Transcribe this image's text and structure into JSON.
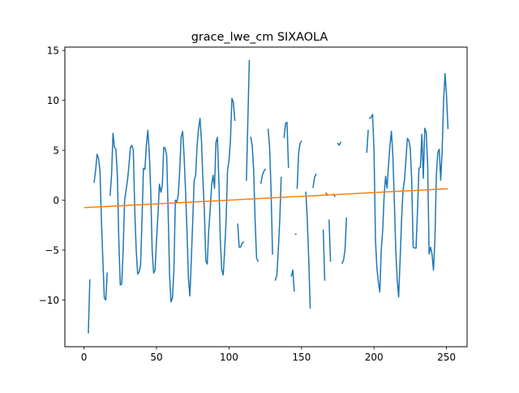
{
  "chart_data": {
    "type": "line",
    "title": "grace_lwe_cm SIXAOLA",
    "xlabel": "",
    "ylabel": "",
    "xlim": [
      -13.2,
      264.2
    ],
    "ylim": [
      -14.68,
      15.34
    ],
    "xticks": [
      0,
      50,
      100,
      150,
      200,
      250
    ],
    "yticks": [
      -10,
      -5,
      0,
      5,
      10,
      15
    ],
    "grid": false,
    "legend": "none",
    "colors": {
      "series": "#1f77b4",
      "trend": "#ff7f0e"
    },
    "series": [
      {
        "role": "observed",
        "color": "#1f77b4",
        "segments": [
          [
            [
              3,
              -13.3
            ],
            [
              4,
              -8.0
            ]
          ],
          [
            [
              7,
              1.8
            ],
            [
              8,
              3.0
            ],
            [
              9,
              4.6
            ],
            [
              10,
              4.2
            ],
            [
              11,
              3.0
            ],
            [
              12,
              -2.0
            ],
            [
              13,
              -6.0
            ],
            [
              14,
              -9.8
            ],
            [
              15,
              -10.0
            ],
            [
              16,
              -7.3
            ]
          ],
          [
            [
              18,
              0.5
            ],
            [
              19,
              2.5
            ],
            [
              20,
              6.7
            ],
            [
              21,
              5.3
            ],
            [
              22,
              5.1
            ],
            [
              23,
              2.5
            ],
            [
              24,
              -4.0
            ],
            [
              25,
              -8.5
            ],
            [
              26,
              -8.4
            ],
            [
              27,
              -5.0
            ],
            [
              28,
              0.0
            ],
            [
              29,
              1.0
            ],
            [
              30,
              2.0
            ],
            [
              31,
              3.5
            ],
            [
              32,
              5.3
            ],
            [
              33,
              5.5
            ],
            [
              34,
              5.0
            ],
            [
              35,
              -1.0
            ],
            [
              36,
              -5.0
            ],
            [
              37,
              -7.4
            ],
            [
              38,
              -7.2
            ],
            [
              39,
              -6.5
            ],
            [
              40,
              -2.0
            ],
            [
              41,
              3.2
            ],
            [
              42,
              3.1
            ],
            [
              43,
              5.5
            ],
            [
              44,
              7.0
            ],
            [
              45,
              4.8
            ],
            [
              46,
              1.0
            ],
            [
              47,
              -5.0
            ],
            [
              48,
              -7.3
            ],
            [
              49,
              -7.0
            ],
            [
              50,
              -4.0
            ],
            [
              51,
              -1.5
            ],
            [
              52,
              1.6
            ],
            [
              53,
              0.8
            ],
            [
              54,
              1.5
            ],
            [
              55,
              5.3
            ],
            [
              56,
              5.2
            ],
            [
              57,
              4.5
            ],
            [
              58,
              -1.0
            ],
            [
              59,
              -7.5
            ],
            [
              60,
              -10.2
            ],
            [
              61,
              -9.8
            ],
            [
              62,
              -7.0
            ],
            [
              63,
              0.0
            ],
            [
              64,
              -0.2
            ],
            [
              65,
              0.5
            ],
            [
              66,
              3.0
            ],
            [
              67,
              6.3
            ],
            [
              68,
              6.9
            ],
            [
              69,
              4.5
            ],
            [
              70,
              1.0
            ],
            [
              71,
              -3.0
            ],
            [
              72,
              -7.8
            ],
            [
              73,
              -9.6
            ],
            [
              74,
              -6.0
            ],
            [
              75,
              -2.0
            ],
            [
              76,
              2.0
            ],
            [
              77,
              2.5
            ],
            [
              78,
              5.5
            ],
            [
              79,
              7.2
            ],
            [
              80,
              8.2
            ],
            [
              81,
              6.0
            ],
            [
              82,
              2.0
            ],
            [
              83,
              -1.0
            ],
            [
              84,
              -6.1
            ],
            [
              85,
              -6.4
            ],
            [
              86,
              -3.0
            ],
            [
              87,
              -1.0
            ],
            [
              88,
              1.5
            ],
            [
              89,
              2.5
            ],
            [
              90,
              1.2
            ],
            [
              91,
              5.8
            ],
            [
              92,
              6.3
            ],
            [
              93,
              2.0
            ],
            [
              94,
              -4.0
            ],
            [
              95,
              -7.0
            ],
            [
              96,
              -7.5
            ],
            [
              97,
              -5.0
            ],
            [
              98,
              -2.0
            ],
            [
              99,
              3.0
            ],
            [
              100,
              4.0
            ],
            [
              101,
              6.0
            ],
            [
              102,
              10.2
            ],
            [
              103,
              9.8
            ],
            [
              104,
              8.0
            ]
          ],
          [
            [
              106,
              -2.4
            ],
            [
              107,
              -4.7
            ],
            [
              108,
              -4.7
            ],
            [
              109,
              -4.3
            ],
            [
              110,
              -4.2
            ]
          ],
          [
            [
              112,
              2.0
            ],
            [
              113,
              8.0
            ],
            [
              114,
              14.0
            ]
          ],
          [
            [
              115,
              6.3
            ],
            [
              116,
              5.5
            ],
            [
              117,
              3.0
            ],
            [
              118,
              -2.0
            ],
            [
              119,
              -5.8
            ],
            [
              120,
              -6.1
            ]
          ],
          [
            [
              122,
              1.7
            ],
            [
              123,
              2.5
            ],
            [
              124,
              2.9
            ],
            [
              125,
              3.1
            ]
          ],
          [
            [
              127,
              7.1
            ],
            [
              128,
              5.3
            ],
            [
              129,
              1.0
            ],
            [
              130,
              -5.4
            ]
          ],
          [
            [
              132,
              -8.0
            ],
            [
              133,
              -7.5
            ],
            [
              134,
              -5.0
            ],
            [
              135,
              -2.0
            ],
            [
              136,
              2.3
            ]
          ],
          [
            [
              138,
              6.3
            ],
            [
              139,
              7.7
            ],
            [
              140,
              7.8
            ],
            [
              141,
              3.3
            ]
          ],
          [
            [
              143,
              -7.6
            ],
            [
              144,
              -7.0
            ],
            [
              145,
              -9.1
            ]
          ],
          [
            [
              146,
              -3.4
            ]
          ],
          [
            [
              147,
              1.2
            ],
            [
              148,
              4.7
            ],
            [
              149,
              5.7
            ],
            [
              150,
              5.9
            ]
          ],
          [
            [
              153,
              0.8
            ],
            [
              154,
              -2.0
            ],
            [
              155,
              -6.0
            ],
            [
              156,
              -10.8
            ]
          ],
          [
            [
              158,
              1.3
            ],
            [
              159,
              2.3
            ],
            [
              160,
              2.6
            ]
          ],
          [
            [
              165,
              -3.0
            ],
            [
              166,
              -8.0
            ]
          ],
          [
            [
              167,
              0.7
            ],
            [
              168,
              0.5
            ]
          ],
          [
            [
              169,
              -2.0
            ],
            [
              170,
              -6.1
            ]
          ],
          [
            [
              172,
              0.6
            ],
            [
              173,
              0.4
            ]
          ],
          [
            [
              175,
              5.7
            ],
            [
              176,
              5.5
            ],
            [
              177,
              5.8
            ]
          ],
          [
            [
              178,
              -6.3
            ],
            [
              179,
              -6.0
            ],
            [
              180,
              -5.0
            ],
            [
              181,
              -1.8
            ]
          ],
          [
            [
              195,
              4.8
            ],
            [
              196,
              7.0
            ]
          ],
          [
            [
              197,
              8.2
            ],
            [
              198,
              8.3
            ],
            [
              199,
              8.6
            ],
            [
              200,
              5.0
            ],
            [
              201,
              -4.0
            ],
            [
              202,
              -6.8
            ],
            [
              203,
              -8.2
            ],
            [
              204,
              -9.2
            ],
            [
              205,
              -5.0
            ],
            [
              206,
              -3.0
            ],
            [
              207,
              0.5
            ],
            [
              208,
              2.4
            ],
            [
              209,
              1.2
            ],
            [
              210,
              3.5
            ],
            [
              211,
              5.5
            ],
            [
              212,
              6.9
            ],
            [
              213,
              4.5
            ],
            [
              214,
              0.0
            ],
            [
              215,
              -5.0
            ],
            [
              216,
              -8.0
            ],
            [
              217,
              -9.7
            ],
            [
              218,
              -6.0
            ],
            [
              219,
              -2.0
            ],
            [
              220,
              1.0
            ],
            [
              221,
              2.0
            ],
            [
              222,
              4.0
            ],
            [
              223,
              6.2
            ],
            [
              224,
              6.0
            ],
            [
              225,
              5.2
            ],
            [
              226,
              2.0
            ],
            [
              227,
              -4.7
            ],
            [
              228,
              -4.8
            ],
            [
              229,
              -4.8
            ],
            [
              230,
              -1.0
            ],
            [
              231,
              3.2
            ],
            [
              232,
              3.3
            ],
            [
              233,
              6.6
            ],
            [
              234,
              2.2
            ],
            [
              235,
              7.2
            ],
            [
              236,
              6.8
            ],
            [
              237,
              3.5
            ],
            [
              238,
              -5.4
            ],
            [
              239,
              -4.7
            ],
            [
              240,
              -5.4
            ],
            [
              241,
              -7.0
            ],
            [
              242,
              -4.0
            ],
            [
              243,
              2.5
            ],
            [
              244,
              4.8
            ],
            [
              245,
              5.1
            ],
            [
              246,
              2.0
            ],
            [
              247,
              5.0
            ],
            [
              248,
              10.0
            ],
            [
              249,
              12.7
            ],
            [
              250,
              10.5
            ],
            [
              251,
              7.2
            ]
          ]
        ]
      },
      {
        "role": "linear-trend",
        "color": "#ff7f0e",
        "x": [
          0,
          251
        ],
        "y": [
          -0.75,
          1.15
        ]
      }
    ]
  }
}
